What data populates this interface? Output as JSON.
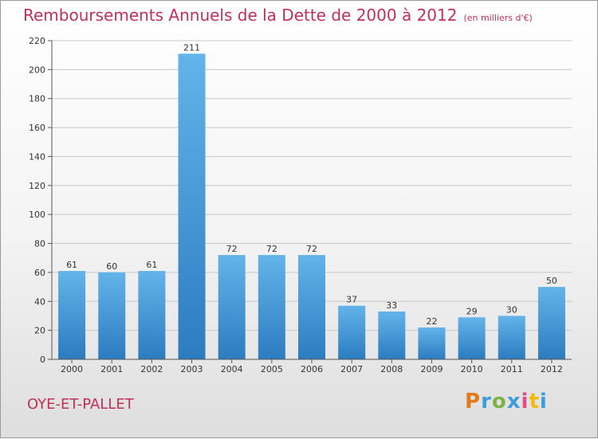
{
  "header": {
    "title": "Remboursements Annuels de la Dette de 2000 à 2012",
    "subtitle": "(en milliers d'€)"
  },
  "footer": {
    "commune": "OYE-ET-PALLET",
    "brand": {
      "letters": [
        "P",
        "r",
        "o",
        "x",
        "i",
        "t",
        "i"
      ],
      "colors": [
        "#e07a1c",
        "#3a9fd8",
        "#7cb342",
        "#3a9fd8",
        "#e64a8a",
        "#f2b90f",
        "#3a9fd8"
      ]
    }
  },
  "colors": {
    "accent": "#c0305a",
    "bar_top": "#63b4ea",
    "bar_bottom": "#2b7cc0"
  },
  "chart_data": {
    "type": "bar",
    "categories": [
      "2000",
      "2001",
      "2002",
      "2003",
      "2004",
      "2005",
      "2006",
      "2007",
      "2008",
      "2009",
      "2010",
      "2011",
      "2012"
    ],
    "values": [
      61,
      60,
      61,
      211,
      72,
      72,
      72,
      37,
      33,
      22,
      29,
      30,
      50
    ],
    "ylim": [
      0,
      220
    ],
    "yticks": [
      0,
      20,
      40,
      60,
      80,
      100,
      120,
      140,
      160,
      180,
      200,
      220
    ],
    "grid": true,
    "legend": "none"
  }
}
